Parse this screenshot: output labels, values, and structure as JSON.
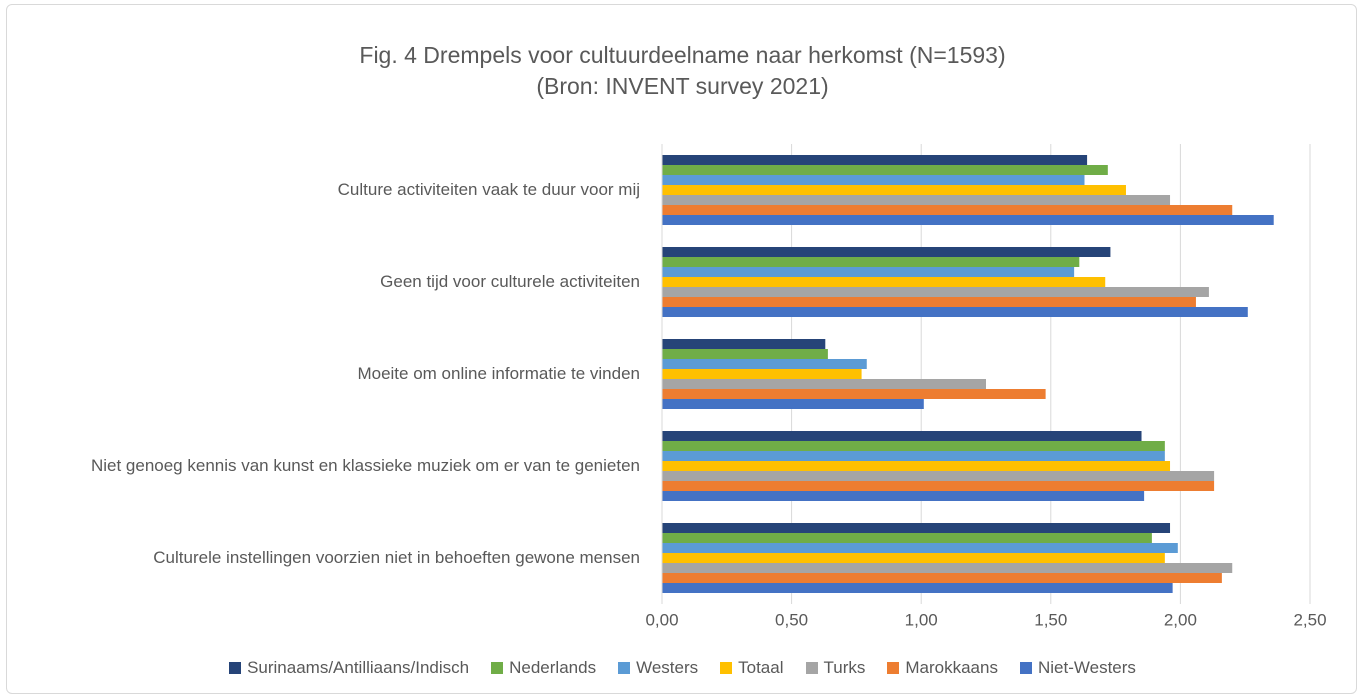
{
  "chart_data": {
    "type": "barh",
    "title": "Fig. 4 Drempels voor cultuurdeelname naar herkomst (N=1593)",
    "subtitle": "(Bron: INVENT survey 2021)",
    "categories": [
      "Culture activiteiten vaak te duur voor mij",
      "Geen tijd voor culturele activiteiten",
      "Moeite om online informatie te vinden",
      "Niet genoeg kennis van kunst en klassieke muziek om er van te genieten",
      "Culturele instellingen voorzien niet in behoeften gewone mensen"
    ],
    "series": [
      {
        "name": "Surinaams/Antilliaans/Indisch",
        "color": "#264478",
        "values": [
          1.64,
          1.73,
          0.63,
          1.85,
          1.96
        ]
      },
      {
        "name": "Nederlands",
        "color": "#70ad47",
        "values": [
          1.72,
          1.61,
          0.64,
          1.94,
          1.89
        ]
      },
      {
        "name": "Westers",
        "color": "#5b9bd5",
        "values": [
          1.63,
          1.59,
          0.79,
          1.94,
          1.99
        ]
      },
      {
        "name": "Totaal",
        "color": "#ffc000",
        "values": [
          1.79,
          1.71,
          0.77,
          1.96,
          1.94
        ]
      },
      {
        "name": "Turks",
        "color": "#a5a5a5",
        "values": [
          1.96,
          2.11,
          1.25,
          2.13,
          2.2
        ]
      },
      {
        "name": "Marokkaans",
        "color": "#ed7d31",
        "values": [
          2.2,
          2.06,
          1.48,
          2.13,
          2.16
        ]
      },
      {
        "name": "Niet-Westers",
        "color": "#4472c4",
        "values": [
          2.36,
          2.26,
          1.01,
          1.86,
          1.97
        ]
      }
    ],
    "xlim": [
      0,
      2.5
    ],
    "xticks": [
      {
        "value": 0,
        "label": "0,00"
      },
      {
        "value": 0.5,
        "label": "0,50"
      },
      {
        "value": 1,
        "label": "1,00"
      },
      {
        "value": 1.5,
        "label": "1,50"
      },
      {
        "value": 2,
        "label": "2,00"
      },
      {
        "value": 2.5,
        "label": "2,50"
      }
    ],
    "grid": true,
    "legend": "bottom"
  }
}
